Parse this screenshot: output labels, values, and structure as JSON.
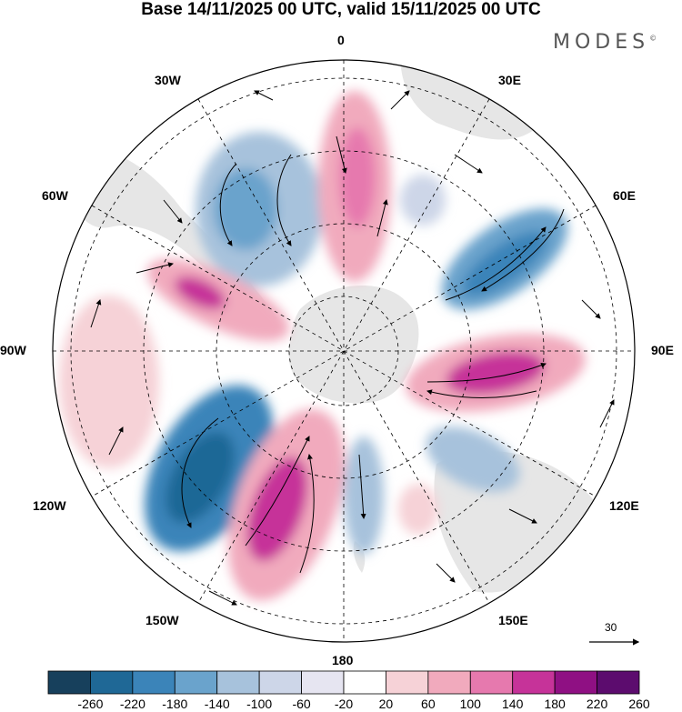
{
  "title": "Base 14/11/2025 00 UTC, valid 15/11/2025 00 UTC",
  "brand": "MODES",
  "brand_mark": "©",
  "longitude_labels": {
    "top": "0",
    "bottom": "180",
    "left": "90W",
    "right": "90E",
    "w30": "30W",
    "e30": "30E",
    "w60": "60W",
    "e60": "60E",
    "w120": "120W",
    "e120": "120E",
    "w150": "150W",
    "e150": "150E"
  },
  "reference_vector": {
    "label": "30",
    "value": 30
  },
  "colorbar": {
    "levels": [
      "-260",
      "-220",
      "-180",
      "-140",
      "-100",
      "-60",
      "-20",
      "20",
      "60",
      "100",
      "140",
      "180",
      "220",
      "260"
    ],
    "colors": [
      "#17405c",
      "#1f6896",
      "#3b84b9",
      "#6aa3cc",
      "#a7c2dc",
      "#cdd6e8",
      "#e6e5f1",
      "#ffffff",
      "#f6d2d7",
      "#f1aabd",
      "#e679ae",
      "#c63399",
      "#8f1083",
      "#5c0c6e"
    ]
  },
  "colors": {
    "land": "#e6e6e6",
    "grid": "#000000"
  }
}
